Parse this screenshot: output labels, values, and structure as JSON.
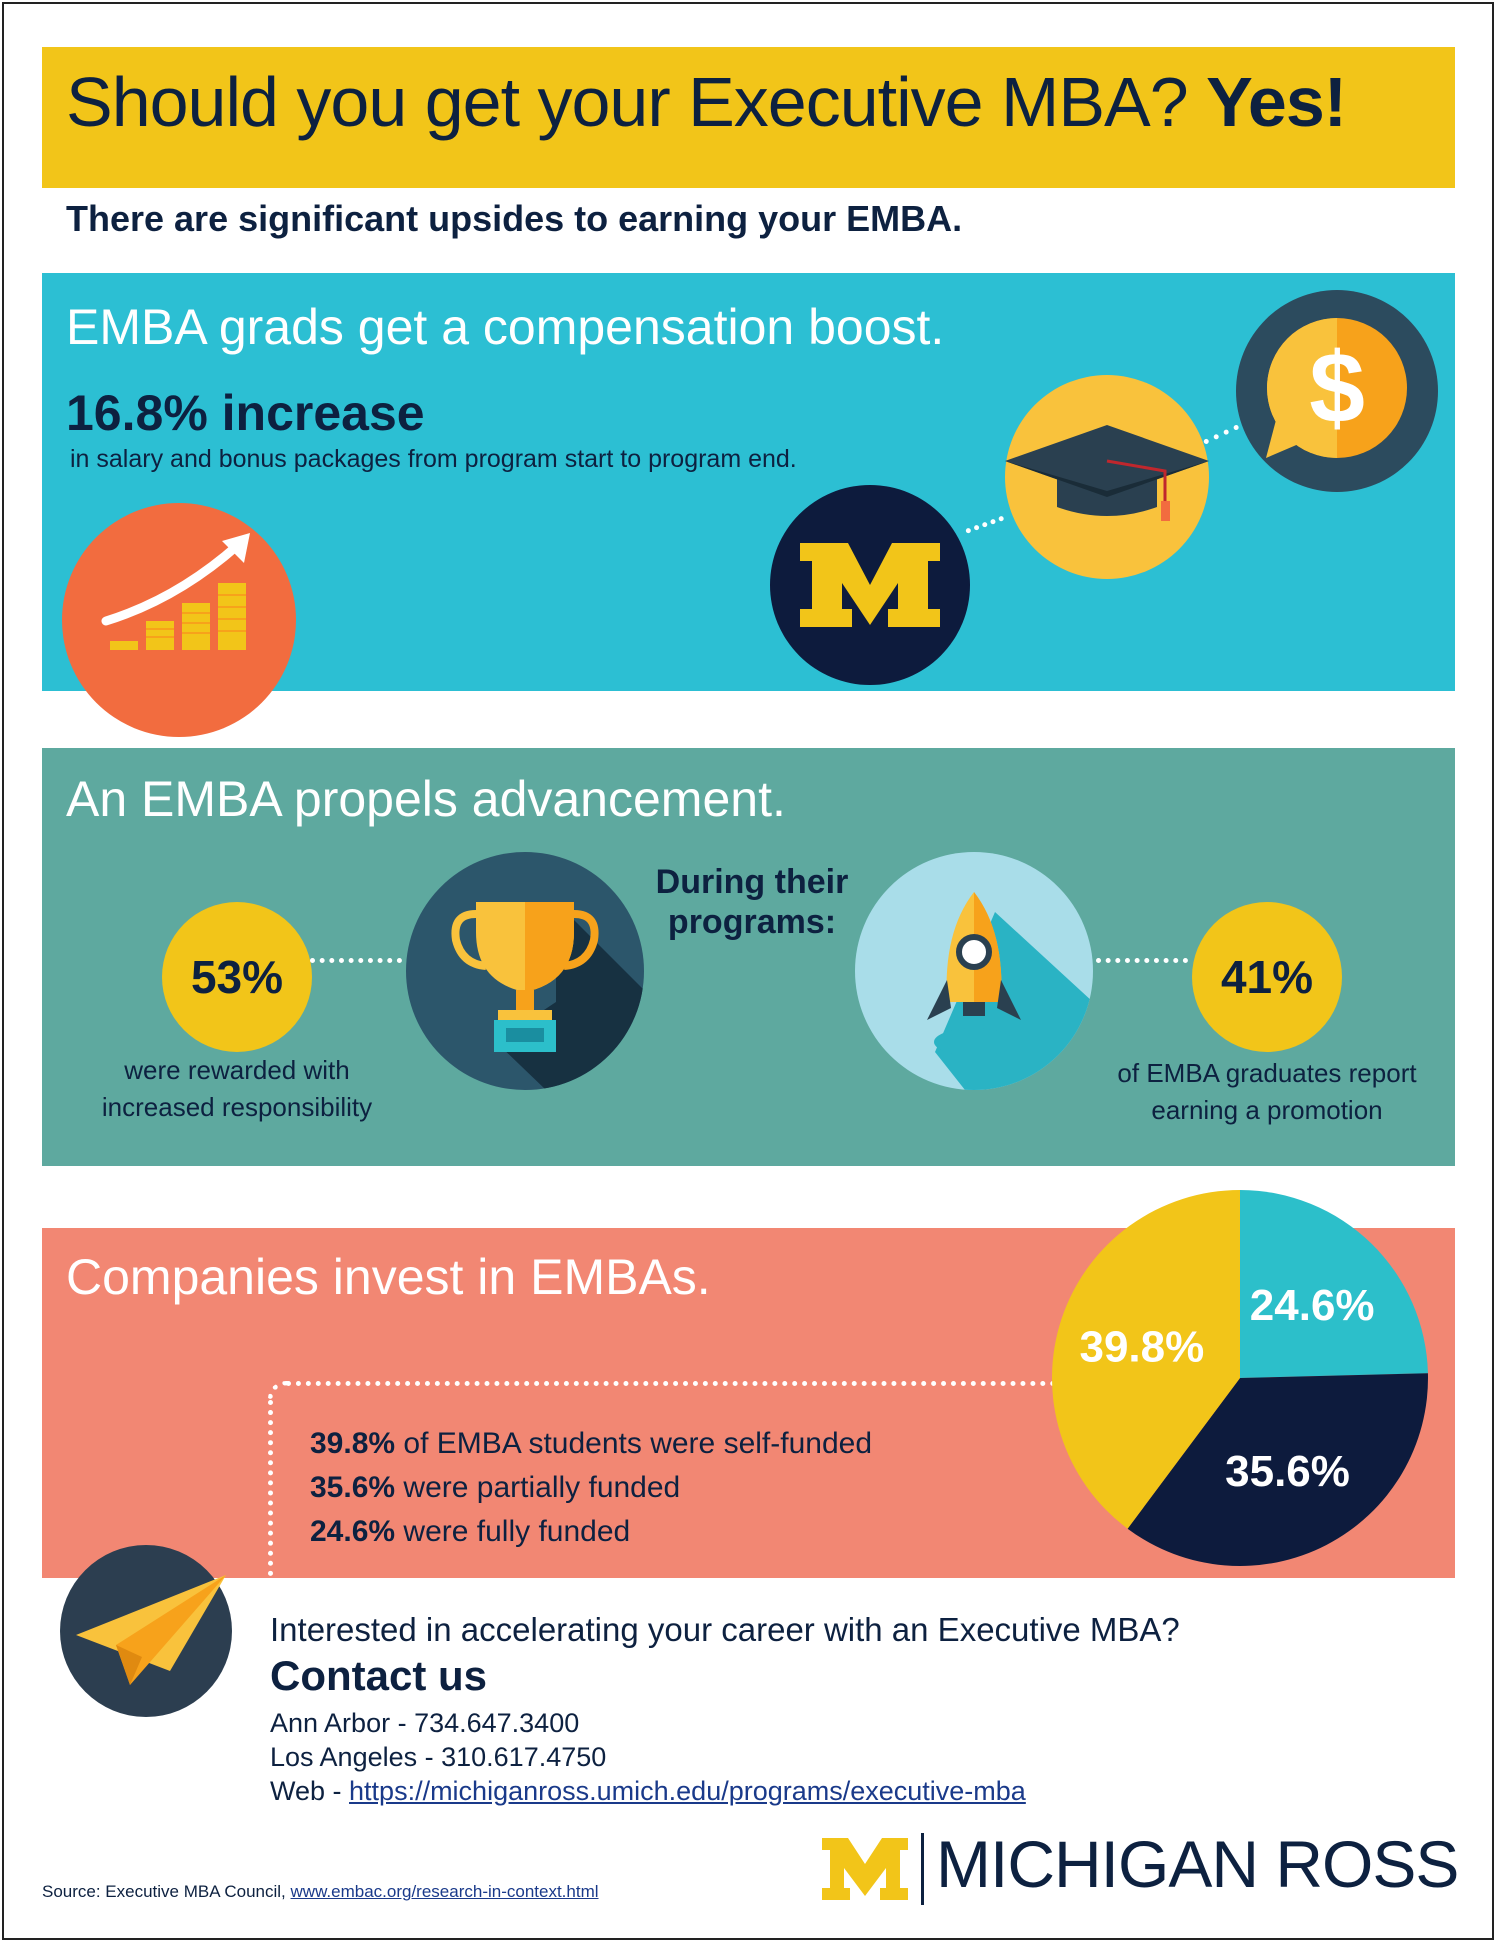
{
  "header": {
    "title": "Should you get your Executive MBA?",
    "title_emphasis": "Yes!",
    "subtitle": "There are significant upsides to earning your EMBA."
  },
  "compensation": {
    "heading": "EMBA grads get a compensation boost.",
    "stat": "16.8% increase",
    "stat_detail": "in salary and bonus packages from program start to program end.",
    "icons": [
      "growth-chart-icon",
      "michigan-m-logo",
      "graduation-cap-icon",
      "dollar-speech-bubble-icon"
    ]
  },
  "advancement": {
    "heading": "An EMBA propels advancement.",
    "during_label": "During their programs:",
    "left_stat": "53%",
    "left_label_1": "were rewarded with",
    "left_label_2": "increased responsibility",
    "right_stat": "41%",
    "right_label_1": "of EMBA graduates report",
    "right_label_2": "earning a promotion",
    "icons": [
      "trophy-icon",
      "rocket-icon"
    ]
  },
  "funding": {
    "heading": "Companies invest in EMBAs.",
    "lines": [
      {
        "pct": "39.8%",
        "text": " of EMBA students were self-funded"
      },
      {
        "pct": "35.6%",
        "text": " were partially funded"
      },
      {
        "pct": "24.6%",
        "text": " were fully funded"
      }
    ]
  },
  "chart_data": {
    "type": "pie",
    "categories": [
      "Fully funded",
      "Partially funded",
      "Self-funded"
    ],
    "values": [
      24.6,
      35.6,
      39.8
    ],
    "labels": [
      "24.6%",
      "35.6%",
      "39.8%"
    ],
    "colors": [
      "#2cbfca",
      "#0d1b3d",
      "#f2c519"
    ]
  },
  "contact": {
    "question": "Interested in accelerating your career with an Executive MBA?",
    "heading": "Contact us",
    "ann_arbor": "Ann Arbor - 734.647.3400",
    "los_angeles": "Los Angeles - 310.617.4750",
    "web_label": "Web - ",
    "web_url": "https://michiganross.umich.edu/programs/executive-mba"
  },
  "footer": {
    "source_label": "Source: Executive MBA Council, ",
    "source_url": "www.embac.org/research-in-context.html",
    "brand": "MICHIGAN ROSS"
  },
  "colors": {
    "navy": "#0d2140",
    "maize": "#f2c519",
    "cyan": "#2cbfd3",
    "teal": "#5ea99f",
    "salmon": "#f28773",
    "orange": "#f26c3f"
  }
}
